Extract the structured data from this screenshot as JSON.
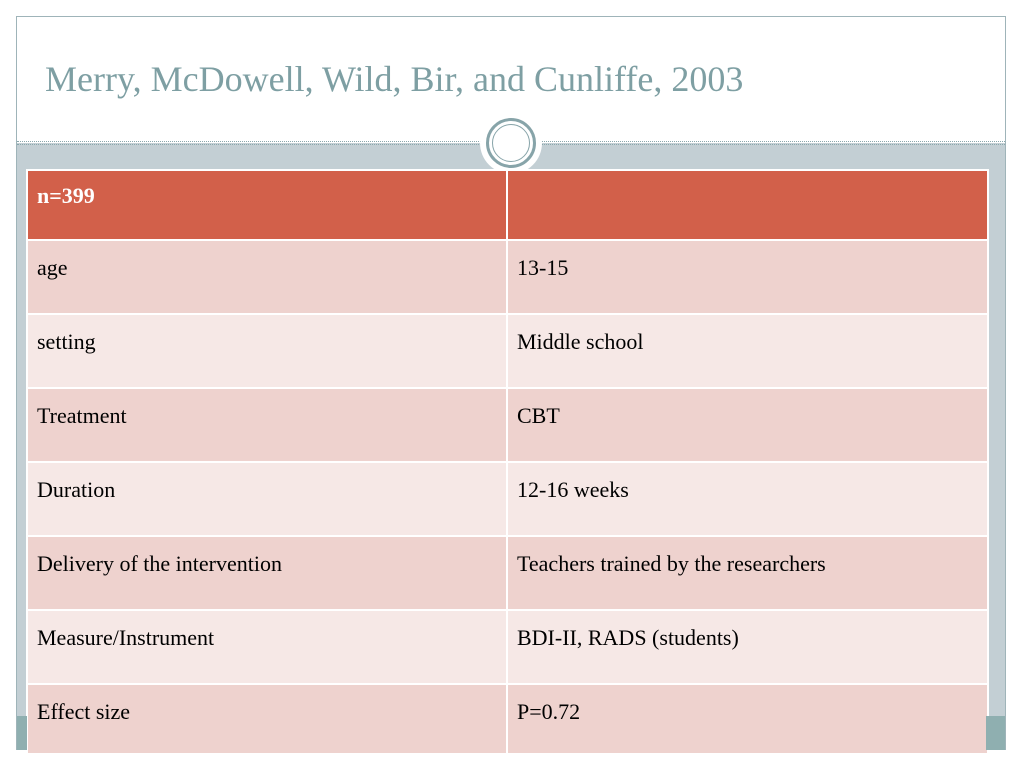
{
  "slide": {
    "title": "Merry, McDowell, Wild, Bir, and Cunliffe, 2003"
  },
  "table": {
    "header": [
      "n=399",
      ""
    ],
    "rows": [
      [
        "age",
        "13-15"
      ],
      [
        "setting",
        "Middle school"
      ],
      [
        "Treatment",
        "CBT"
      ],
      [
        "Duration",
        "12-16 weeks"
      ],
      [
        "Delivery of the intervention",
        "Teachers trained by the researchers"
      ],
      [
        "Measure/Instrument",
        "BDI-II, RADS (students)"
      ],
      [
        "Effect size",
        "P=0.72"
      ]
    ]
  },
  "colors": {
    "title": "#7e9fa3",
    "header_fill": "#d2604a",
    "row_fill_odd": "#eed2ce",
    "row_fill_even": "#f6e8e6",
    "frame": "#c3cfd4",
    "accent_teal": "#8fafb0"
  }
}
